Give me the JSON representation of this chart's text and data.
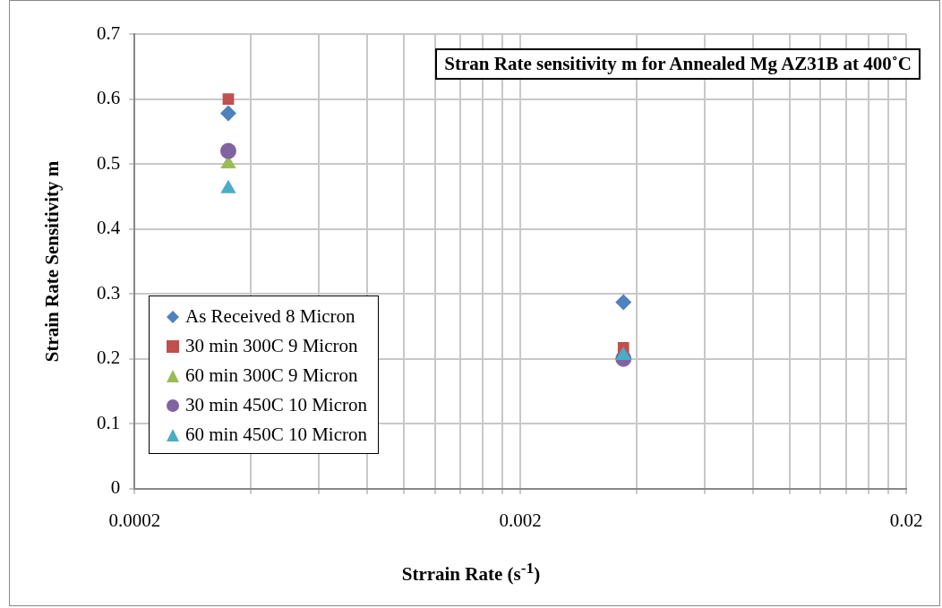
{
  "chart_data": {
    "type": "scatter",
    "title": "Stran Rate sensitivity m for Annealed Mg AZ31B at 400˚C",
    "xlabel": "Strrain Rate (s$^{-1}$)",
    "ylabel": "Strain Rate Sensitivity m",
    "log": "x",
    "grid": true,
    "legend": "bottom left",
    "xlim": [
      0.0002,
      0.02
    ],
    "xticks": [
      0.0002,
      {
        "value": 0.0004,
        "label": null
      },
      {
        "value": 0.0006,
        "label": null
      },
      {
        "value": 0.0008,
        "label": null
      },
      {
        "value": 0.001,
        "label": null
      },
      {
        "value": 0.0012,
        "label": null
      },
      {
        "value": 0.0014,
        "label": null
      },
      {
        "value": 0.0016,
        "label": null
      },
      {
        "value": 0.0018,
        "label": null
      },
      0.002,
      {
        "value": 0.004,
        "label": null
      },
      {
        "value": 0.006,
        "label": null
      },
      {
        "value": 0.008,
        "label": null
      },
      {
        "value": 0.01,
        "label": null
      },
      {
        "value": 0.012,
        "label": null
      },
      {
        "value": 0.014,
        "label": null
      },
      {
        "value": 0.016,
        "label": null
      },
      {
        "value": 0.018,
        "label": null
      },
      0.02
    ],
    "ylim": [
      0,
      0.7
    ],
    "yticks": [
      0,
      0.1,
      0.2,
      0.3,
      0.4,
      0.5,
      0.6,
      0.7
    ],
    "x": [
      0.00035,
      0.0037
    ],
    "series": [
      {
        "name": "As Received 8 Micron",
        "color": "#4f81bd",
        "marker": "diamond",
        "values": [
          0.578,
          0.287
        ]
      },
      {
        "name": "30 min 300C 9 Micron",
        "color": "#c0504d",
        "marker": "square",
        "values": [
          0.6,
          0.217
        ]
      },
      {
        "name": "60 min 300C 9 Micron",
        "color": "#9bbb59",
        "marker": "triangle",
        "values": [
          0.5,
          null
        ]
      },
      {
        "name": "30 min 450C 10 Micron",
        "color": "#8064a2",
        "marker": "circle",
        "values": [
          0.52,
          0.2
        ]
      },
      {
        "name": "60 min 450C 10 Micron",
        "color": "#4bacc6",
        "marker": "triangle",
        "values": [
          0.462,
          0.205
        ]
      }
    ]
  }
}
